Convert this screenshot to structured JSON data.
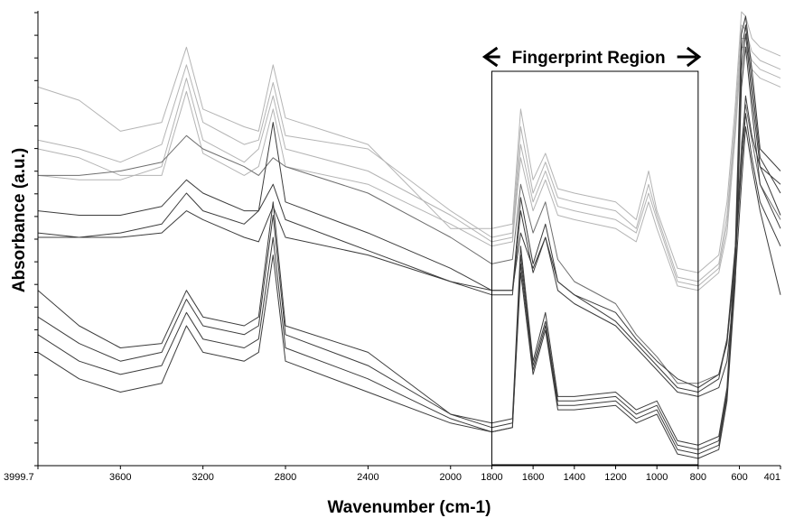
{
  "chart_data": {
    "type": "line",
    "title": "",
    "xlabel": "Wavenumber (cm-1)",
    "ylabel": "Absorbance (a.u.)",
    "x_reversed": true,
    "xlim": [
      3999.7,
      401
    ],
    "ylim": [
      0,
      100
    ],
    "x_ticks": [
      3999.7,
      3600,
      3200,
      2800,
      2400,
      2000,
      1800,
      1600,
      1400,
      1200,
      1000,
      800,
      600,
      401
    ],
    "x_tick_labels": [
      "3999.7",
      "3600",
      "3200",
      "2800",
      "2400",
      "2000",
      "1800",
      "1600",
      "1400",
      "1200",
      "1000",
      "800",
      "600",
      "401"
    ],
    "y_tick_count": 20,
    "y_tick_labels_shown": false,
    "grid": false,
    "legend": "none",
    "colors": {
      "light": "#b4b4b4",
      "medium": "#6e6e6e",
      "dark": "#3c3c3c"
    },
    "annotation": {
      "label": "Fingerprint Region",
      "x_from": 1800,
      "x_to": 800
    },
    "series": [
      {
        "group": "light",
        "x": [
          3999.7,
          3800,
          3600,
          3400,
          3280,
          3200,
          3000,
          2930,
          2860,
          2800,
          2400,
          2000,
          1800,
          1700,
          1660,
          1600,
          1540,
          1480,
          1400,
          1200,
          1100,
          1040,
          1000,
          900,
          800,
          700,
          660,
          620,
          590,
          570,
          540,
          500,
          401
        ],
        "y": [
          84,
          81,
          74,
          76,
          93,
          79,
          75,
          74,
          89,
          77,
          71,
          52,
          52,
          53,
          79,
          63,
          69,
          61,
          60,
          58,
          54,
          65,
          56,
          43,
          42,
          46,
          58,
          80,
          101,
          100,
          95,
          93,
          91
        ]
      },
      {
        "group": "light",
        "x": [
          3999.7,
          3800,
          3600,
          3400,
          3280,
          3200,
          3000,
          2930,
          2860,
          2800,
          2400,
          2000,
          1800,
          1700,
          1660,
          1600,
          1540,
          1480,
          1400,
          1200,
          1100,
          1040,
          1000,
          900,
          800,
          700,
          660,
          620,
          590,
          570,
          540,
          500,
          401
        ],
        "y": [
          72,
          70,
          67,
          71,
          89,
          76,
          71,
          72,
          85,
          73,
          70,
          56,
          50,
          51,
          75,
          60,
          67,
          59,
          58,
          56,
          52,
          62,
          55,
          41,
          40,
          44,
          55,
          77,
          98,
          97,
          92,
          90,
          88
        ]
      },
      {
        "group": "light",
        "x": [
          3999.7,
          3800,
          3600,
          3400,
          3280,
          3200,
          3000,
          2930,
          2860,
          2800,
          2400,
          2000,
          1800,
          1700,
          1660,
          1600,
          1540,
          1480,
          1400,
          1200,
          1100,
          1040,
          1000,
          900,
          800,
          700,
          660,
          620,
          590,
          570,
          540,
          500,
          401
        ],
        "y": [
          64,
          63,
          63,
          66,
          86,
          72,
          67,
          70,
          82,
          70,
          65,
          55,
          49,
          50,
          71,
          58,
          65,
          57,
          56,
          54,
          51,
          60,
          54,
          40,
          39,
          43,
          53,
          75,
          95,
          95,
          90,
          88,
          86
        ]
      },
      {
        "group": "light",
        "x": [
          3999.7,
          3800,
          3600,
          3400,
          3280,
          3200,
          3000,
          2930,
          2860,
          2800,
          2400,
          2000,
          1800,
          1700,
          1660,
          1600,
          1540,
          1480,
          1400,
          1200,
          1100,
          1040,
          1000,
          900,
          800,
          700,
          660,
          620,
          590,
          570,
          540,
          500,
          401
        ],
        "y": [
          70,
          68,
          64,
          64,
          83,
          69,
          64,
          66,
          79,
          66,
          62,
          53,
          48,
          49,
          68,
          56,
          63,
          55,
          54,
          52,
          49,
          58,
          52,
          39,
          38,
          42,
          51,
          73,
          93,
          93,
          88,
          86,
          84
        ]
      },
      {
        "group": "medium",
        "x": [
          3999.7,
          3800,
          3600,
          3400,
          3280,
          3200,
          3000,
          2930,
          2860,
          2800,
          2400,
          2000,
          1800,
          1700,
          1660,
          1600,
          1540,
          1480,
          1400,
          1200,
          1100,
          1000,
          900,
          800,
          700,
          660,
          620,
          590,
          570,
          540,
          500,
          401
        ],
        "y": [
          64,
          64,
          65,
          67,
          73,
          70,
          66,
          64,
          68,
          66,
          60,
          50,
          44,
          45,
          62,
          51,
          58,
          45,
          40,
          35,
          28,
          23,
          17,
          17,
          19,
          27,
          46,
          71,
          80,
          72,
          62,
          54
        ]
      },
      {
        "group": "dark",
        "x": [
          3999.7,
          3800,
          3600,
          3400,
          3280,
          3200,
          3000,
          2930,
          2860,
          2800,
          2400,
          2000,
          1800,
          1700,
          1660,
          1600,
          1540,
          1480,
          1400,
          1200,
          1100,
          1000,
          900,
          800,
          700,
          660,
          620,
          590,
          570,
          540,
          500,
          401
        ],
        "y": [
          51,
          50,
          50,
          51,
          56,
          54,
          50,
          49,
          57,
          50,
          46,
          40,
          38,
          38,
          51,
          43,
          50,
          40,
          37,
          31,
          26,
          21,
          16,
          15,
          18,
          27,
          48,
          68,
          82,
          73,
          66,
          62
        ]
      },
      {
        "group": "dark",
        "x": [
          3999.7,
          3800,
          3600,
          3400,
          3280,
          3200,
          3000,
          2930,
          2860,
          2800,
          2400,
          2000,
          1800,
          1700,
          1660,
          1600,
          1540,
          1480,
          1400,
          1200,
          1100,
          1000,
          900,
          800,
          700,
          660,
          620,
          590,
          570,
          540,
          500,
          401
        ],
        "y": [
          56,
          55,
          55,
          57,
          63,
          60,
          56,
          56,
          76,
          58,
          51,
          43,
          38,
          38,
          59,
          44,
          53,
          40,
          37,
          33,
          27,
          22,
          18,
          16,
          19,
          26,
          45,
          66,
          78,
          68,
          58,
          48
        ]
      },
      {
        "group": "dark",
        "x": [
          3999.7,
          3800,
          3600,
          3400,
          3280,
          3200,
          3000,
          2930,
          2860,
          2800,
          2400,
          2000,
          1800,
          1700,
          1660,
          1600,
          1540,
          1480,
          1400,
          1200,
          1100,
          1000,
          900,
          800,
          700,
          660,
          620,
          590,
          570,
          540,
          500,
          401
        ],
        "y": [
          50,
          50,
          51,
          53,
          60,
          56,
          53,
          56,
          62,
          54,
          47,
          40,
          37,
          37,
          56,
          42,
          50,
          38,
          35,
          30,
          25,
          20,
          15,
          14,
          16,
          22,
          41,
          62,
          75,
          66,
          56,
          37
        ]
      },
      {
        "group": "dark",
        "x": [
          3999.7,
          3800,
          3600,
          3400,
          3280,
          3200,
          3000,
          2930,
          2860,
          2800,
          2400,
          2000,
          1800,
          1700,
          1660,
          1600,
          1540,
          1480,
          1400,
          1200,
          1100,
          1000,
          900,
          800,
          700,
          660,
          620,
          590,
          570,
          540,
          500,
          401
        ],
        "y": [
          38,
          30,
          25,
          26,
          38,
          32,
          30,
          32,
          58,
          30,
          24,
          10,
          8,
          9,
          48,
          22,
          33,
          14,
          14,
          15,
          11,
          13,
          4,
          3,
          5,
          16,
          48,
          96,
          100,
          88,
          70,
          65
        ]
      },
      {
        "group": "dark",
        "x": [
          3999.7,
          3800,
          3600,
          3400,
          3280,
          3200,
          3000,
          2930,
          2860,
          2800,
          2400,
          2000,
          1800,
          1700,
          1660,
          1600,
          1540,
          1480,
          1400,
          1200,
          1100,
          1000,
          900,
          800,
          700,
          660,
          620,
          590,
          570,
          540,
          500,
          401
        ],
        "y": [
          32,
          26,
          22,
          24,
          36,
          30,
          28,
          30,
          55,
          28,
          21,
          10,
          7,
          8,
          46,
          21,
          31,
          13,
          13,
          14,
          10,
          12,
          3,
          2,
          4,
          15,
          45,
          92,
          98,
          85,
          68,
          60
        ]
      },
      {
        "group": "dark",
        "x": [
          3999.7,
          3800,
          3600,
          3400,
          3280,
          3200,
          3000,
          2930,
          2860,
          2800,
          2400,
          2000,
          1800,
          1700,
          1660,
          1600,
          1540,
          1480,
          1400,
          1200,
          1100,
          1000,
          900,
          800,
          700,
          660,
          620,
          590,
          570,
          540,
          500,
          401
        ],
        "y": [
          28,
          22,
          19,
          21,
          33,
          27,
          25,
          27,
          50,
          25,
          18,
          9,
          6,
          7,
          44,
          20,
          30,
          12,
          12,
          13,
          9,
          11,
          2,
          1,
          3,
          14,
          42,
          88,
          96,
          82,
          66,
          55
        ]
      },
      {
        "group": "dark",
        "x": [
          3999.7,
          3800,
          3600,
          3400,
          3280,
          3200,
          3000,
          2930,
          2860,
          2800,
          2400,
          2000,
          1800,
          1700,
          1660,
          1600,
          1540,
          1480,
          1400,
          1200,
          1100,
          1000,
          900,
          800,
          700,
          660,
          620,
          590,
          570,
          540,
          500,
          401
        ],
        "y": [
          24,
          18,
          15,
          17,
          30,
          24,
          22,
          24,
          46,
          22,
          15,
          8,
          6,
          7,
          42,
          19,
          29,
          11,
          11,
          12,
          8,
          10,
          1,
          0,
          2,
          13,
          40,
          84,
          93,
          79,
          62,
          52
        ]
      }
    ]
  }
}
